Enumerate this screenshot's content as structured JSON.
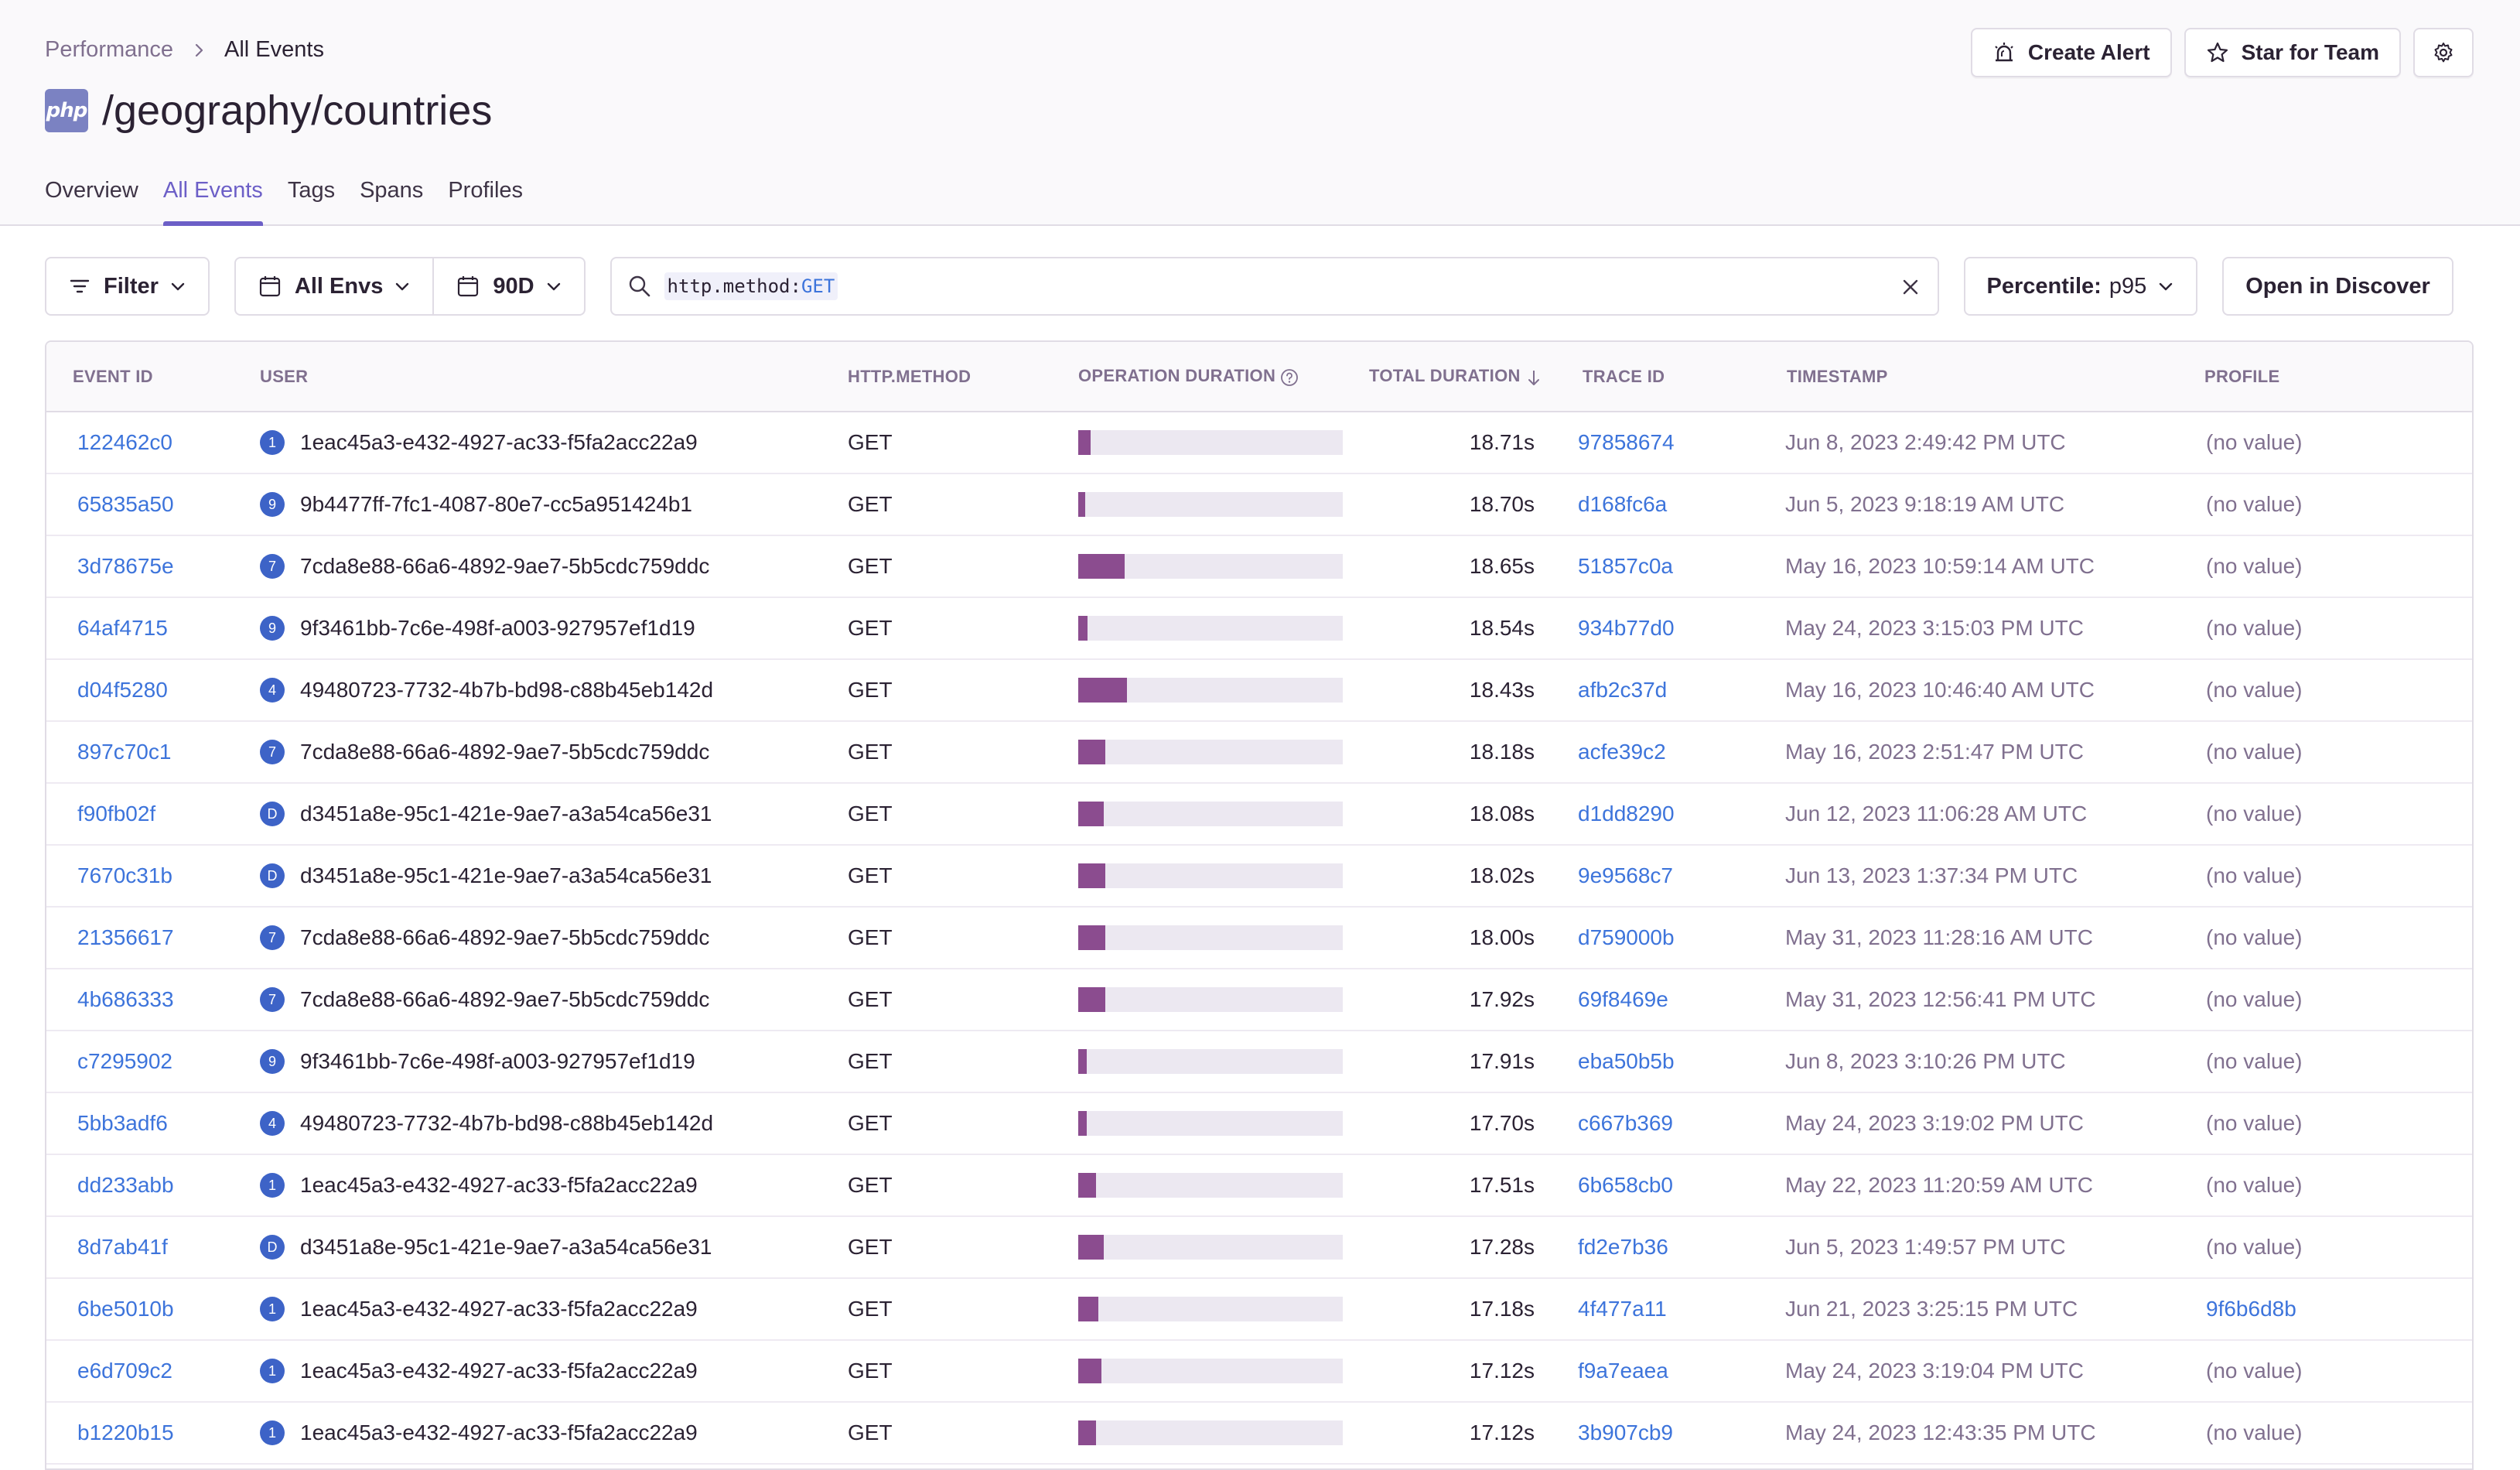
{
  "breadcrumb": {
    "parent": "Performance",
    "current": "All Events"
  },
  "title": "/geography/countries",
  "platform_badge": "php",
  "tabs": [
    "Overview",
    "All Events",
    "Tags",
    "Spans",
    "Profiles"
  ],
  "active_tab": "All Events",
  "actions": {
    "create_alert": "Create Alert",
    "star_for_team": "Star for Team"
  },
  "toolbar": {
    "filter": "Filter",
    "env": "All Envs",
    "period": "90D",
    "search_key": "http.method:",
    "search_value": "GET",
    "percentile_label": "Percentile:",
    "percentile_value": "p95",
    "open_discover": "Open in Discover"
  },
  "columns": [
    "Event ID",
    "User",
    "http.method",
    "Operation Duration",
    "Total Duration",
    "Trace ID",
    "Timestamp",
    "Profile"
  ],
  "colors": {
    "accent": "#6c5fc7",
    "link": "#3d74db",
    "bar": "#8b4c8f",
    "avatar": "#3d63c7"
  },
  "rows": [
    {
      "event_id": "122462c0",
      "avatar": "1",
      "user": "1eac45a3-e432-4927-ac33-f5fa2acc22a9",
      "method": "GET",
      "op_fraction": 0.045,
      "total": "18.71s",
      "trace": "97858674",
      "timestamp": "Jun 8, 2023 2:49:42 PM UTC",
      "profile": "(no value)"
    },
    {
      "event_id": "65835a50",
      "avatar": "9",
      "user": "9b4477ff-7fc1-4087-80e7-cc5a951424b1",
      "method": "GET",
      "op_fraction": 0.025,
      "total": "18.70s",
      "trace": "d168fc6a",
      "timestamp": "Jun 5, 2023 9:18:19 AM UTC",
      "profile": "(no value)"
    },
    {
      "event_id": "3d78675e",
      "avatar": "7",
      "user": "7cda8e88-66a6-4892-9ae7-5b5cdc759ddc",
      "method": "GET",
      "op_fraction": 0.17,
      "total": "18.65s",
      "trace": "51857c0a",
      "timestamp": "May 16, 2023 10:59:14 AM UTC",
      "profile": "(no value)"
    },
    {
      "event_id": "64af4715",
      "avatar": "9",
      "user": "9f3461bb-7c6e-498f-a003-927957ef1d19",
      "method": "GET",
      "op_fraction": 0.035,
      "total": "18.54s",
      "trace": "934b77d0",
      "timestamp": "May 24, 2023 3:15:03 PM UTC",
      "profile": "(no value)"
    },
    {
      "event_id": "d04f5280",
      "avatar": "4",
      "user": "49480723-7732-4b7b-bd98-c88b45eb142d",
      "method": "GET",
      "op_fraction": 0.18,
      "total": "18.43s",
      "trace": "afb2c37d",
      "timestamp": "May 16, 2023 10:46:40 AM UTC",
      "profile": "(no value)"
    },
    {
      "event_id": "897c70c1",
      "avatar": "7",
      "user": "7cda8e88-66a6-4892-9ae7-5b5cdc759ddc",
      "method": "GET",
      "op_fraction": 0.1,
      "total": "18.18s",
      "trace": "acfe39c2",
      "timestamp": "May 16, 2023 2:51:47 PM UTC",
      "profile": "(no value)"
    },
    {
      "event_id": "f90fb02f",
      "avatar": "D",
      "user": "d3451a8e-95c1-421e-9ae7-a3a54ca56e31",
      "method": "GET",
      "op_fraction": 0.095,
      "total": "18.08s",
      "trace": "d1dd8290",
      "timestamp": "Jun 12, 2023 11:06:28 AM UTC",
      "profile": "(no value)"
    },
    {
      "event_id": "7670c31b",
      "avatar": "D",
      "user": "d3451a8e-95c1-421e-9ae7-a3a54ca56e31",
      "method": "GET",
      "op_fraction": 0.1,
      "total": "18.02s",
      "trace": "9e9568c7",
      "timestamp": "Jun 13, 2023 1:37:34 PM UTC",
      "profile": "(no value)"
    },
    {
      "event_id": "21356617",
      "avatar": "7",
      "user": "7cda8e88-66a6-4892-9ae7-5b5cdc759ddc",
      "method": "GET",
      "op_fraction": 0.1,
      "total": "18.00s",
      "trace": "d759000b",
      "timestamp": "May 31, 2023 11:28:16 AM UTC",
      "profile": "(no value)"
    },
    {
      "event_id": "4b686333",
      "avatar": "7",
      "user": "7cda8e88-66a6-4892-9ae7-5b5cdc759ddc",
      "method": "GET",
      "op_fraction": 0.1,
      "total": "17.92s",
      "trace": "69f8469e",
      "timestamp": "May 31, 2023 12:56:41 PM UTC",
      "profile": "(no value)"
    },
    {
      "event_id": "c7295902",
      "avatar": "9",
      "user": "9f3461bb-7c6e-498f-a003-927957ef1d19",
      "method": "GET",
      "op_fraction": 0.03,
      "total": "17.91s",
      "trace": "eba50b5b",
      "timestamp": "Jun 8, 2023 3:10:26 PM UTC",
      "profile": "(no value)"
    },
    {
      "event_id": "5bb3adf6",
      "avatar": "4",
      "user": "49480723-7732-4b7b-bd98-c88b45eb142d",
      "method": "GET",
      "op_fraction": 0.03,
      "total": "17.70s",
      "trace": "c667b369",
      "timestamp": "May 24, 2023 3:19:02 PM UTC",
      "profile": "(no value)"
    },
    {
      "event_id": "dd233abb",
      "avatar": "1",
      "user": "1eac45a3-e432-4927-ac33-f5fa2acc22a9",
      "method": "GET",
      "op_fraction": 0.065,
      "total": "17.51s",
      "trace": "6b658cb0",
      "timestamp": "May 22, 2023 11:20:59 AM UTC",
      "profile": "(no value)"
    },
    {
      "event_id": "8d7ab41f",
      "avatar": "D",
      "user": "d3451a8e-95c1-421e-9ae7-a3a54ca56e31",
      "method": "GET",
      "op_fraction": 0.095,
      "total": "17.28s",
      "trace": "fd2e7b36",
      "timestamp": "Jun 5, 2023 1:49:57 PM UTC",
      "profile": "(no value)"
    },
    {
      "event_id": "6be5010b",
      "avatar": "1",
      "user": "1eac45a3-e432-4927-ac33-f5fa2acc22a9",
      "method": "GET",
      "op_fraction": 0.075,
      "total": "17.18s",
      "trace": "4f477a11",
      "timestamp": "Jun 21, 2023 3:25:15 PM UTC",
      "profile": "9f6b6d8b"
    },
    {
      "event_id": "e6d709c2",
      "avatar": "1",
      "user": "1eac45a3-e432-4927-ac33-f5fa2acc22a9",
      "method": "GET",
      "op_fraction": 0.085,
      "total": "17.12s",
      "trace": "f9a7eaea",
      "timestamp": "May 24, 2023 3:19:04 PM UTC",
      "profile": "(no value)"
    },
    {
      "event_id": "b1220b15",
      "avatar": "1",
      "user": "1eac45a3-e432-4927-ac33-f5fa2acc22a9",
      "method": "GET",
      "op_fraction": 0.065,
      "total": "17.12s",
      "trace": "3b907cb9",
      "timestamp": "May 24, 2023 12:43:35 PM UTC",
      "profile": "(no value)"
    }
  ]
}
